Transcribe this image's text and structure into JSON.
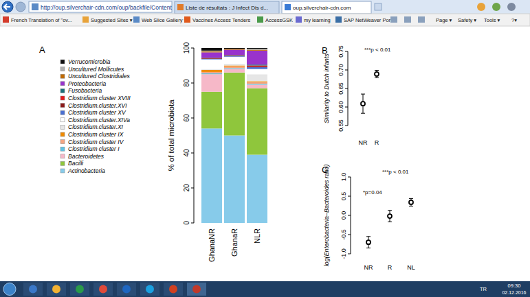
{
  "browser": {
    "address": "http://oup.silverchair-cdn.com/oup/backfile/Content",
    "tabs": [
      "Liste de résultats : J Infect Dis d...",
      "oup.silverchair-cdn.com"
    ],
    "favorites": [
      "French Translation of \"ov...",
      "Suggested Sites ▾",
      "Web Slice Gallery ▾",
      "Vaccines Access Tenders",
      "AccessGSK",
      "my learning",
      "SAP NetWeaver Portal"
    ],
    "commands": [
      "Page ▾",
      "Safety ▾",
      "Tools ▾",
      "?▾"
    ],
    "taskbar": {
      "language": "TR",
      "time": "09:30",
      "date": "02.12.2016"
    }
  },
  "chart_data": [
    {
      "type": "bar",
      "stacked": true,
      "title": "A",
      "ylabel": "% of total microbiota",
      "categories": [
        "GhanaNR",
        "GhanaR",
        "NLR"
      ],
      "legend": "left",
      "ylim": [
        0,
        100
      ],
      "yticks": [
        0,
        20,
        40,
        60,
        80,
        100
      ],
      "series": [
        {
          "name": "Actinobacteria",
          "color": "#87cbea",
          "values": [
            54,
            50,
            39
          ]
        },
        {
          "name": "Bacilli",
          "color": "#8fc63c",
          "values": [
            21,
            36,
            38
          ]
        },
        {
          "name": "Bacteroidetes",
          "color": "#f6b8c8",
          "values": [
            10,
            2,
            2
          ]
        },
        {
          "name": "Clostridium cluster I",
          "color": "#5fc3e4",
          "values": [
            0.5,
            0.5,
            0.5
          ]
        },
        {
          "name": "Clostridium cluster IV",
          "color": "#f4a582",
          "values": [
            0.8,
            1,
            1
          ]
        },
        {
          "name": "Clostridium cluster IX",
          "color": "#f08a00",
          "values": [
            1.2,
            0.5,
            0.5
          ]
        },
        {
          "name": "Clostridium.cluster.XI",
          "color": "#e6e6e6",
          "values": [
            0.5,
            1,
            4
          ]
        },
        {
          "name": "Clostridium.cluster.XIVa",
          "color": "#ffffff",
          "values": [
            5.5,
            4,
            3
          ]
        },
        {
          "name": "Clostridium cluster XV",
          "color": "#4a6fd0",
          "values": [
            0.3,
            0.3,
            1
          ]
        },
        {
          "name": "Clostridium.cluster.XVI",
          "color": "#8b1a1a",
          "values": [
            0.3,
            0.2,
            0.5
          ]
        },
        {
          "name": "Clostridium cluster XVIII",
          "color": "#e41a1c",
          "values": [
            0.2,
            0.2,
            0.5
          ]
        },
        {
          "name": "Fusobacteria",
          "color": "#1a6f7a",
          "values": [
            0.2,
            0.3,
            0.5
          ]
        },
        {
          "name": "Proteobacteria",
          "color": "#9933cc",
          "values": [
            3,
            3,
            8
          ]
        },
        {
          "name": "Uncultured Clostridiales",
          "color": "#c06a00",
          "values": [
            0.5,
            0.5,
            0.5
          ]
        },
        {
          "name": "Uncultured Mollicutes",
          "color": "#b0b0b0",
          "values": [
            0.5,
            0,
            0.5
          ]
        },
        {
          "name": "Verrucomicrobia",
          "color": "#111111",
          "values": [
            1.5,
            0.5,
            0.5
          ]
        }
      ]
    },
    {
      "type": "scatter",
      "title": "B",
      "ylabel": "Similarity to Dutch infants",
      "categories": [
        "NR",
        "R"
      ],
      "values": [
        0.609,
        0.689
      ],
      "errors": [
        0.026,
        0.01
      ],
      "marker": "circle",
      "ylim": [
        0.55,
        0.75
      ],
      "yticks": [
        0.55,
        {
          "value": 0.6,
          "label": "0.60"
        },
        0.65,
        {
          "value": 0.7,
          "label": "0.70"
        },
        0.75
      ],
      "annotations": [
        "***p < 0.01"
      ]
    },
    {
      "type": "scatter",
      "title": "C",
      "ylabel": "log(Enterobacteria–Bacteroides ratio)",
      "categories": [
        "NR",
        "R",
        "NL"
      ],
      "values": [
        -0.7,
        -0.02,
        0.34
      ],
      "errors": [
        0.15,
        0.15,
        0.1
      ],
      "marker": "circle",
      "ylim": [
        -1,
        1
      ],
      "yticks": [
        {
          "value": -1,
          "label": "-1.0"
        },
        -0.5,
        {
          "value": 0,
          "label": "0.0"
        },
        0.5,
        {
          "value": 1,
          "label": "1.0"
        }
      ],
      "annotations": [
        "***p < 0.01",
        "*p=0.04"
      ]
    }
  ]
}
